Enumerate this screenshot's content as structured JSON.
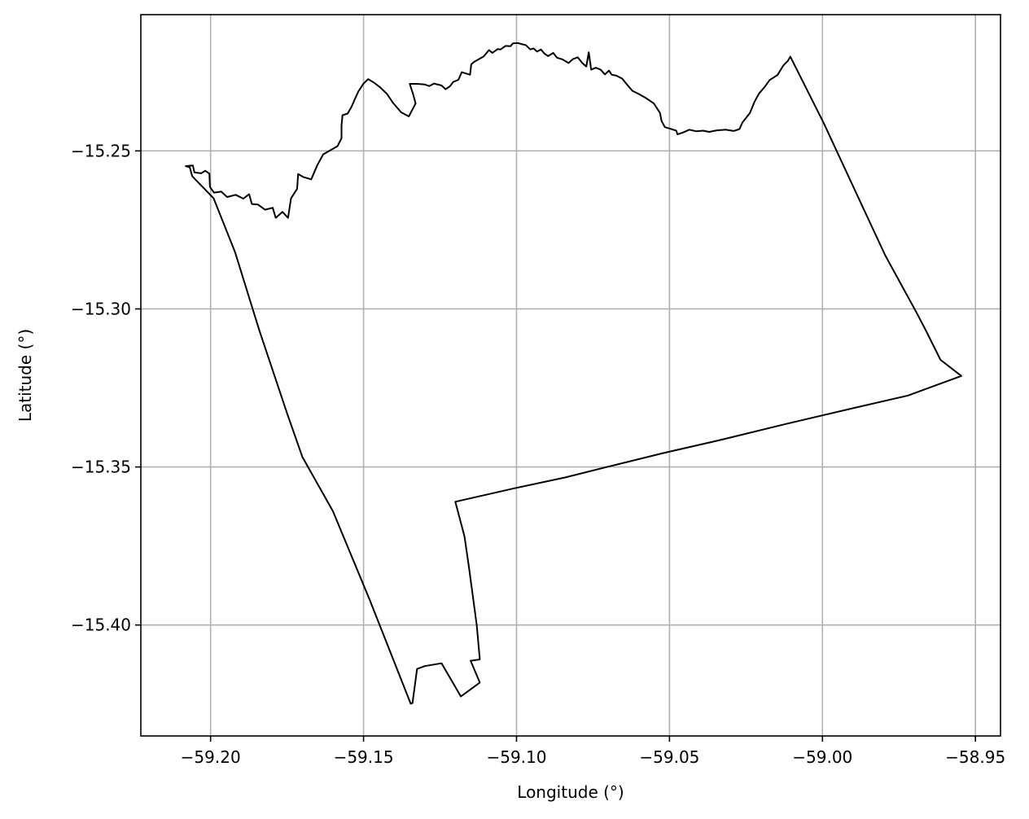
{
  "chart_data": {
    "type": "map-outline",
    "title": "",
    "xlabel": "Longitude (°)",
    "ylabel": "Latitude (°)",
    "xlim": [
      -59.2228,
      -58.9418
    ],
    "ylim": [
      -15.4351,
      -15.2069
    ],
    "grid": true,
    "colors": {
      "outline": "#000000",
      "grid": "#b0b0b0",
      "frame": "#000000"
    },
    "x_ticks": [
      {
        "value": -59.2,
        "label": "−59.20"
      },
      {
        "value": -59.15,
        "label": "−59.15"
      },
      {
        "value": -59.1,
        "label": "−59.10"
      },
      {
        "value": -59.05,
        "label": "−59.05"
      },
      {
        "value": -59.0,
        "label": "−59.00"
      },
      {
        "value": -58.95,
        "label": "−58.95"
      }
    ],
    "y_ticks": [
      {
        "value": -15.25,
        "label": "−15.25"
      },
      {
        "value": -15.3,
        "label": "−15.30"
      },
      {
        "value": -15.35,
        "label": "−15.35"
      },
      {
        "value": -15.4,
        "label": "−15.40"
      }
    ],
    "boundary": [
      [
        -59.2081,
        -15.2548
      ],
      [
        -59.2058,
        -15.2546
      ],
      [
        -59.2053,
        -15.2568
      ],
      [
        -59.2031,
        -15.2571
      ],
      [
        -59.2017,
        -15.2563
      ],
      [
        -59.2004,
        -15.2572
      ],
      [
        -59.2002,
        -15.2614
      ],
      [
        -59.1989,
        -15.2632
      ],
      [
        -59.1965,
        -15.2629
      ],
      [
        -59.1946,
        -15.2646
      ],
      [
        -59.1918,
        -15.2639
      ],
      [
        -59.1893,
        -15.2651
      ],
      [
        -59.1874,
        -15.2637
      ],
      [
        -59.1865,
        -15.2668
      ],
      [
        -59.1845,
        -15.267
      ],
      [
        -59.1822,
        -15.2686
      ],
      [
        -59.1797,
        -15.268
      ],
      [
        -59.1787,
        -15.2712
      ],
      [
        -59.1765,
        -15.2693
      ],
      [
        -59.1747,
        -15.2712
      ],
      [
        -59.1737,
        -15.265
      ],
      [
        -59.1717,
        -15.262
      ],
      [
        -59.1714,
        -15.2573
      ],
      [
        -59.1696,
        -15.2583
      ],
      [
        -59.1671,
        -15.259
      ],
      [
        -59.1651,
        -15.2545
      ],
      [
        -59.1632,
        -15.2511
      ],
      [
        -59.1585,
        -15.2485
      ],
      [
        -59.1572,
        -15.246
      ],
      [
        -59.1572,
        -15.242
      ],
      [
        -59.1569,
        -15.2387
      ],
      [
        -59.1552,
        -15.2382
      ],
      [
        -59.1539,
        -15.236
      ],
      [
        -59.1528,
        -15.2335
      ],
      [
        -59.1517,
        -15.2312
      ],
      [
        -59.15,
        -15.2287
      ],
      [
        -59.1485,
        -15.2273
      ],
      [
        -59.1466,
        -15.2284
      ],
      [
        -59.1447,
        -15.2298
      ],
      [
        -59.1423,
        -15.232
      ],
      [
        -59.1404,
        -15.2348
      ],
      [
        -59.1377,
        -15.2378
      ],
      [
        -59.1352,
        -15.2391
      ],
      [
        -59.133,
        -15.235
      ],
      [
        -59.1338,
        -15.2321
      ],
      [
        -59.1349,
        -15.2288
      ],
      [
        -59.1325,
        -15.2288
      ],
      [
        -59.13,
        -15.229
      ],
      [
        -59.1285,
        -15.2295
      ],
      [
        -59.127,
        -15.2287
      ],
      [
        -59.1245,
        -15.2293
      ],
      [
        -59.1232,
        -15.2305
      ],
      [
        -59.1218,
        -15.2296
      ],
      [
        -59.1207,
        -15.2282
      ],
      [
        -59.119,
        -15.2275
      ],
      [
        -59.1179,
        -15.2251
      ],
      [
        -59.1152,
        -15.2259
      ],
      [
        -59.1148,
        -15.2226
      ],
      [
        -59.1138,
        -15.2218
      ],
      [
        -59.1107,
        -15.2201
      ],
      [
        -59.109,
        -15.2181
      ],
      [
        -59.1079,
        -15.219
      ],
      [
        -59.1062,
        -15.2178
      ],
      [
        -59.1052,
        -15.2179
      ],
      [
        -59.1036,
        -15.2168
      ],
      [
        -59.102,
        -15.2169
      ],
      [
        -59.1012,
        -15.216
      ],
      [
        -59.0995,
        -15.2159
      ],
      [
        -59.098,
        -15.2163
      ],
      [
        -59.097,
        -15.2165
      ],
      [
        -59.0955,
        -15.2179
      ],
      [
        -59.0944,
        -15.2176
      ],
      [
        -59.0933,
        -15.2186
      ],
      [
        -59.092,
        -15.2179
      ],
      [
        -59.091,
        -15.2191
      ],
      [
        -59.0897,
        -15.22
      ],
      [
        -59.088,
        -15.219
      ],
      [
        -59.0868,
        -15.2205
      ],
      [
        -59.0849,
        -15.2211
      ],
      [
        -59.083,
        -15.2222
      ],
      [
        -59.0816,
        -15.221
      ],
      [
        -59.08,
        -15.2204
      ],
      [
        -59.0785,
        -15.2222
      ],
      [
        -59.0772,
        -15.2233
      ],
      [
        -59.0764,
        -15.2188
      ],
      [
        -59.0756,
        -15.2243
      ],
      [
        -59.0741,
        -15.2237
      ],
      [
        -59.0725,
        -15.2243
      ],
      [
        -59.0711,
        -15.2258
      ],
      [
        -59.0698,
        -15.2246
      ],
      [
        -59.0689,
        -15.2259
      ],
      [
        -59.0674,
        -15.2262
      ],
      [
        -59.0655,
        -15.2271
      ],
      [
        -59.0639,
        -15.229
      ],
      [
        -59.0621,
        -15.231
      ],
      [
        -59.0602,
        -15.2319
      ],
      [
        -59.058,
        -15.2331
      ],
      [
        -59.0551,
        -15.235
      ],
      [
        -59.0531,
        -15.238
      ],
      [
        -59.0526,
        -15.2405
      ],
      [
        -59.0515,
        -15.2425
      ],
      [
        -59.0497,
        -15.243
      ],
      [
        -59.0478,
        -15.2436
      ],
      [
        -59.0474,
        -15.2448
      ],
      [
        -59.0456,
        -15.2442
      ],
      [
        -59.0435,
        -15.2433
      ],
      [
        -59.0412,
        -15.2438
      ],
      [
        -59.039,
        -15.2436
      ],
      [
        -59.037,
        -15.244
      ],
      [
        -59.0345,
        -15.2435
      ],
      [
        -59.0317,
        -15.2433
      ],
      [
        -59.029,
        -15.2437
      ],
      [
        -59.0271,
        -15.2431
      ],
      [
        -59.0262,
        -15.2411
      ],
      [
        -59.025,
        -15.2396
      ],
      [
        -59.0237,
        -15.238
      ],
      [
        -59.0222,
        -15.2344
      ],
      [
        -59.0207,
        -15.2318
      ],
      [
        -59.019,
        -15.2299
      ],
      [
        -59.0173,
        -15.2276
      ],
      [
        -59.0147,
        -15.226
      ],
      [
        -59.0128,
        -15.223
      ],
      [
        -59.0113,
        -15.2215
      ],
      [
        -59.0105,
        -15.2202
      ],
      [
        -58.9995,
        -15.2414
      ],
      [
        -58.9895,
        -15.2622
      ],
      [
        -58.9795,
        -15.283
      ],
      [
        -58.9695,
        -15.3007
      ],
      [
        -58.9662,
        -15.3068
      ],
      [
        -58.9614,
        -15.3161
      ],
      [
        -58.9546,
        -15.3212
      ],
      [
        -58.972,
        -15.3274
      ],
      [
        -58.99,
        -15.3314
      ],
      [
        -59.012,
        -15.3364
      ],
      [
        -59.034,
        -15.3416
      ],
      [
        -59.052,
        -15.3456
      ],
      [
        -59.07,
        -15.3499
      ],
      [
        -59.084,
        -15.3533
      ],
      [
        -59.1,
        -15.3566
      ],
      [
        -59.12,
        -15.361
      ],
      [
        -59.117,
        -15.372
      ],
      [
        -59.1155,
        -15.382
      ],
      [
        -59.113,
        -15.4
      ],
      [
        -59.112,
        -15.4109
      ],
      [
        -59.115,
        -15.4113
      ],
      [
        -59.112,
        -15.4182
      ],
      [
        -59.1182,
        -15.4226
      ],
      [
        -59.1245,
        -15.4121
      ],
      [
        -59.13,
        -15.413
      ],
      [
        -59.1325,
        -15.4139
      ],
      [
        -59.134,
        -15.4247
      ],
      [
        -59.1346,
        -15.4249
      ],
      [
        -59.148,
        -15.392
      ],
      [
        -59.16,
        -15.364
      ],
      [
        -59.17,
        -15.3468
      ],
      [
        -59.175,
        -15.333
      ],
      [
        -59.184,
        -15.307
      ],
      [
        -59.192,
        -15.282
      ],
      [
        -59.199,
        -15.265
      ],
      [
        -59.206,
        -15.258
      ],
      [
        -59.2068,
        -15.2552
      ],
      [
        -59.2081,
        -15.2548
      ]
    ]
  }
}
